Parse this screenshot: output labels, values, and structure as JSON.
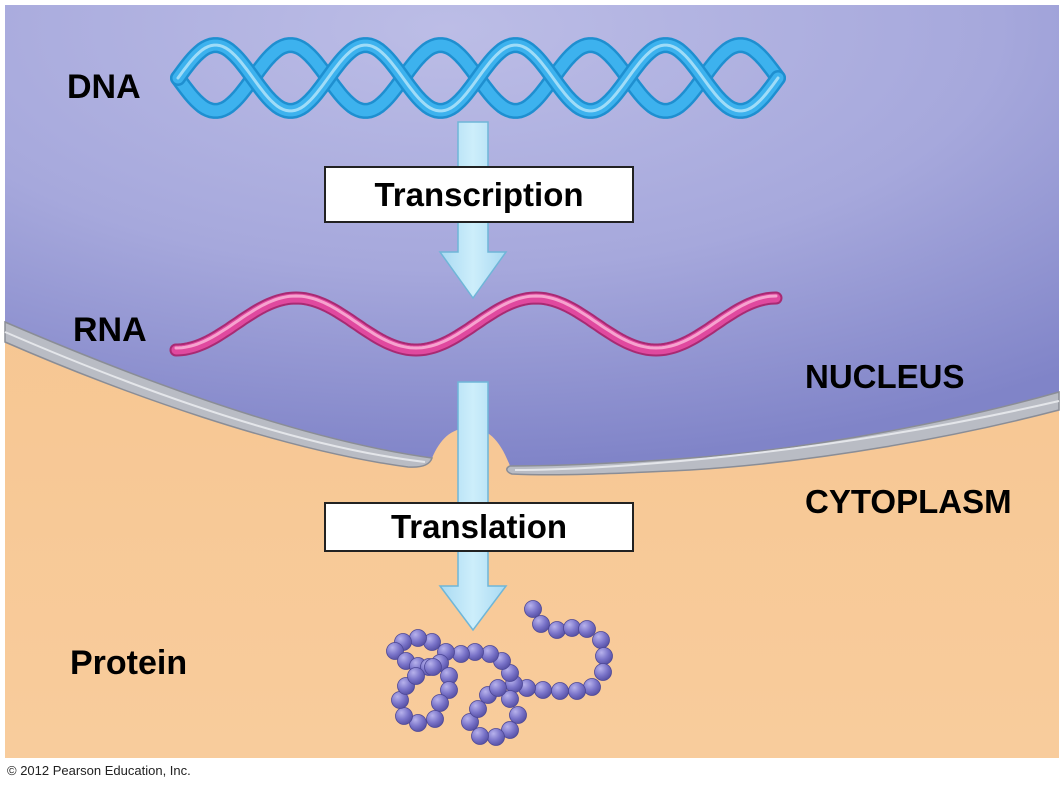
{
  "labels": {
    "dna": "DNA",
    "rna": "RNA",
    "protein": "Protein",
    "nucleus": "NUCLEUS",
    "cytoplasm": "CYTOPLASM"
  },
  "processes": {
    "transcription": "Transcription",
    "translation": "Translation"
  },
  "copyright": "© 2012 Pearson Education, Inc.",
  "colors": {
    "nucleus": "#a9abdc",
    "nucleus_dark": "#7d80c4",
    "cytoplasm": "#f6c48e",
    "envelope": "#b9bcc4",
    "dna": "#3db2ee",
    "rna": "#e0499f",
    "arrow": "#b9e3f6",
    "protein_bead": "#7a74c9"
  },
  "icons": {
    "dna": "dna-double-helix",
    "rna": "rna-single-strand",
    "protein": "amino-acid-chain"
  }
}
